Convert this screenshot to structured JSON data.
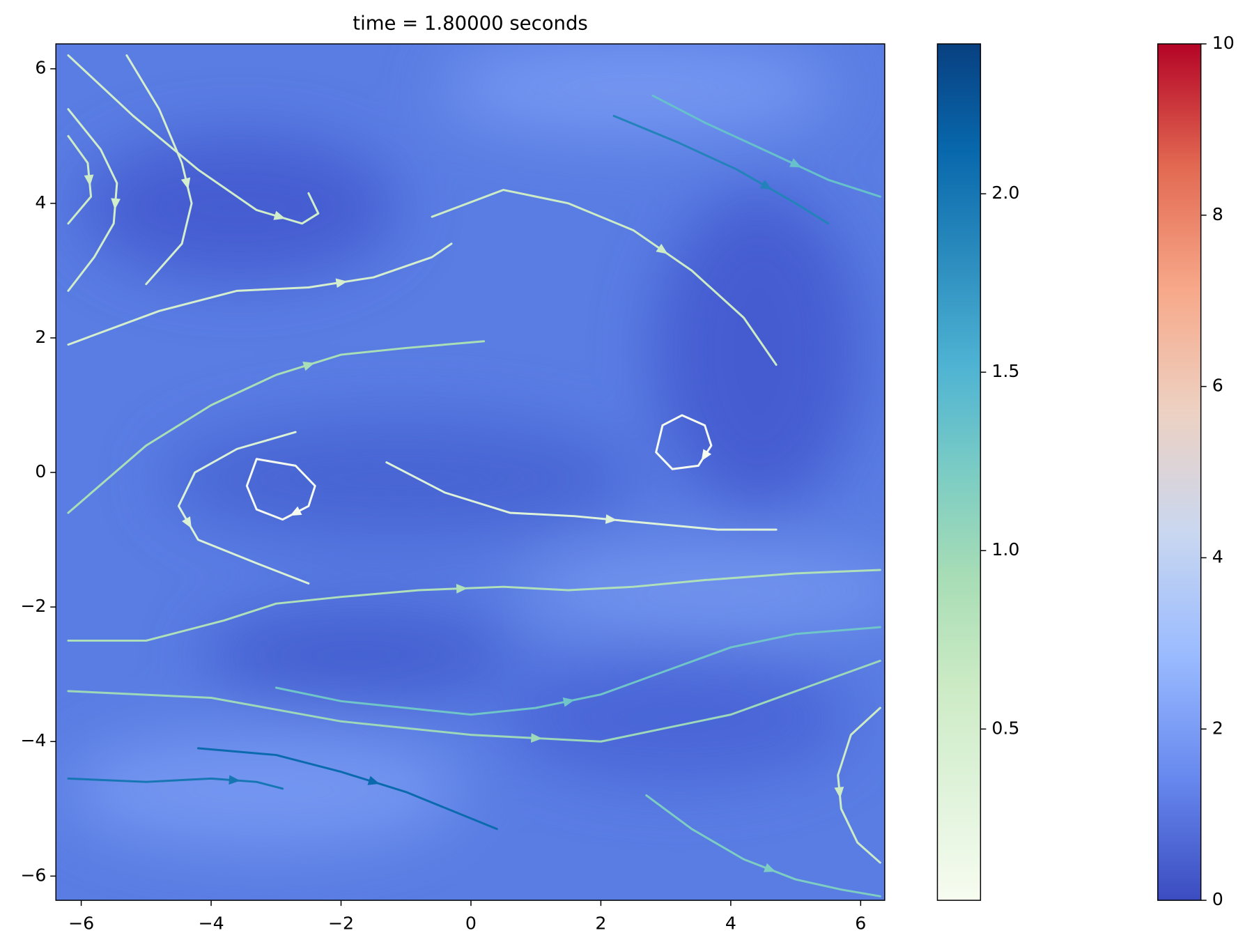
{
  "chart_data": {
    "type": "streamplot",
    "title": "time = 1.80000 seconds",
    "xlim": [
      -6.39,
      6.37
    ],
    "ylim": [
      -6.36,
      6.37
    ],
    "xticks": [
      {
        "value": -6,
        "label": "−6"
      },
      {
        "value": -4,
        "label": "−4"
      },
      {
        "value": -2,
        "label": "−2"
      },
      0,
      2,
      4,
      6
    ],
    "yticks": [
      {
        "value": -6,
        "label": "−6"
      },
      {
        "value": -4,
        "label": "−4"
      },
      {
        "value": -2,
        "label": "−2"
      },
      0,
      2,
      4,
      6
    ],
    "streamlines": [
      {
        "x": [
          -6.2,
          -5.2,
          -4.2,
          -3.3,
          -2.6,
          -2.35,
          -2.5
        ],
        "y": [
          6.2,
          5.3,
          4.5,
          3.9,
          3.7,
          3.85,
          4.15
        ],
        "speed": 0.55
      },
      {
        "x": [
          -5.3,
          -4.8,
          -4.45,
          -4.3,
          -4.45,
          -5.0
        ],
        "y": [
          6.2,
          5.4,
          4.6,
          4.0,
          3.4,
          2.8
        ],
        "speed": 0.5
      },
      {
        "x": [
          -6.2,
          -5.7,
          -5.45,
          -5.5,
          -5.8,
          -6.2
        ],
        "y": [
          5.4,
          4.8,
          4.3,
          3.7,
          3.2,
          2.7
        ],
        "speed": 0.55
      },
      {
        "x": [
          -6.2,
          -5.9,
          -5.85,
          -6.2
        ],
        "y": [
          5.0,
          4.6,
          4.1,
          3.7
        ],
        "speed": 0.6
      },
      {
        "x": [
          -6.2,
          -4.8,
          -3.6,
          -2.5,
          -1.5,
          -0.6,
          -0.3
        ],
        "y": [
          1.9,
          2.4,
          2.7,
          2.75,
          2.9,
          3.2,
          3.4
        ],
        "speed": 0.5
      },
      {
        "x": [
          -3.3,
          -2.7,
          -2.4,
          -2.5,
          -2.9,
          -3.3,
          -3.45,
          -3.3
        ],
        "y": [
          0.2,
          0.1,
          -0.2,
          -0.5,
          -0.7,
          -0.55,
          -0.2,
          0.2
        ],
        "speed": 0.05
      },
      {
        "x": [
          2.95,
          3.25,
          3.6,
          3.7,
          3.5,
          3.1,
          2.85,
          2.95
        ],
        "y": [
          0.7,
          0.85,
          0.7,
          0.4,
          0.1,
          0.05,
          0.3,
          0.7
        ],
        "speed": 0.05
      },
      {
        "x": [
          -6.2,
          -5.0,
          -3.8,
          -3.0,
          -2.0,
          -0.8,
          0.5,
          1.5,
          2.5,
          3.6,
          5.0,
          6.3
        ],
        "y": [
          -2.5,
          -2.5,
          -2.2,
          -1.95,
          -1.85,
          -1.75,
          -1.7,
          -1.75,
          -1.7,
          -1.6,
          -1.5,
          -1.45
        ],
        "speed": 0.85
      },
      {
        "x": [
          -6.2,
          -5.0,
          -4.0,
          -3.3,
          -2.9
        ],
        "y": [
          -4.55,
          -4.6,
          -4.55,
          -4.6,
          -4.7
        ],
        "speed": 2.0
      },
      {
        "x": [
          -4.2,
          -3.0,
          -2.0,
          -1.0,
          0.4
        ],
        "y": [
          -4.1,
          -4.2,
          -4.45,
          -4.75,
          -5.3
        ],
        "speed": 2.1
      },
      {
        "x": [
          2.7,
          3.4,
          4.2,
          5.0,
          5.7,
          6.3
        ],
        "y": [
          -4.8,
          -5.3,
          -5.75,
          -6.05,
          -6.2,
          -6.3
        ],
        "speed": 1.2
      },
      {
        "x": [
          2.8,
          3.6,
          4.5,
          5.5,
          6.3
        ],
        "y": [
          5.6,
          5.2,
          4.8,
          4.35,
          4.1
        ],
        "speed": 1.35
      },
      {
        "x": [
          2.2,
          3.2,
          4.1,
          5.0,
          5.5
        ],
        "y": [
          5.3,
          4.9,
          4.5,
          4.0,
          3.7
        ],
        "speed": 1.9
      },
      {
        "x": [
          -1.3,
          -0.4,
          0.6,
          1.6,
          2.7,
          3.8,
          4.7
        ],
        "y": [
          0.15,
          -0.3,
          -0.6,
          -0.65,
          -0.75,
          -0.85,
          -0.85
        ],
        "speed": 0.35
      },
      {
        "x": [
          6.3,
          5.85,
          5.65,
          5.7,
          5.95,
          6.3
        ],
        "y": [
          -3.5,
          -3.9,
          -4.5,
          -5.0,
          -5.5,
          -5.8
        ],
        "speed": 0.6
      },
      {
        "x": [
          -2.7,
          -3.6,
          -4.25,
          -4.5,
          -4.2,
          -3.3,
          -2.5
        ],
        "y": [
          0.6,
          0.35,
          0.0,
          -0.5,
          -1.0,
          -1.35,
          -1.65
        ],
        "speed": 0.4
      },
      {
        "x": [
          -0.6,
          0.5,
          1.5,
          2.5,
          3.4,
          4.2,
          4.7
        ],
        "y": [
          3.8,
          4.2,
          4.0,
          3.6,
          3.0,
          2.3,
          1.6
        ],
        "speed": 0.6
      },
      {
        "x": [
          -3.0,
          -2.0,
          -1.0,
          0.0,
          1.0,
          2.0,
          3.0,
          4.0,
          5.0,
          6.3
        ],
        "y": [
          -3.2,
          -3.4,
          -3.5,
          -3.6,
          -3.5,
          -3.3,
          -2.95,
          -2.6,
          -2.4,
          -2.3
        ],
        "speed": 1.3
      },
      {
        "x": [
          -6.2,
          -5.0,
          -4.0,
          -3.0,
          -2.0,
          -1.0,
          0.2
        ],
        "y": [
          -0.6,
          0.4,
          1.0,
          1.45,
          1.75,
          1.85,
          1.95
        ],
        "speed": 0.9
      },
      {
        "x": [
          -6.2,
          -4.0,
          -2.0,
          0.0,
          2.0,
          4.0,
          6.3
        ],
        "y": [
          -3.25,
          -3.35,
          -3.7,
          -3.9,
          -4.0,
          -3.6,
          -2.8
        ],
        "speed": 1.0
      }
    ],
    "colorbars": [
      {
        "lim": [
          0.02,
          2.42
        ],
        "ticks": [
          0.5,
          {
            "value": 1.0,
            "label": "1.0"
          },
          1.5,
          {
            "value": 2.0,
            "label": "2.0"
          }
        ],
        "colors": [
          "#f7fcf0",
          "#e0f3db",
          "#ccebc5",
          "#a8ddb5",
          "#7bccc4",
          "#4eb3d3",
          "#2b8cbe",
          "#0868ac",
          "#084081"
        ]
      },
      {
        "lim": [
          0,
          10
        ],
        "ticks": [
          0,
          2,
          4,
          6,
          8,
          10
        ],
        "colors": [
          "#3b4cc0",
          "#6788ee",
          "#9abbff",
          "#c9d7f0",
          "#edd1c2",
          "#f7a889",
          "#e26952",
          "#b40426"
        ]
      }
    ]
  }
}
